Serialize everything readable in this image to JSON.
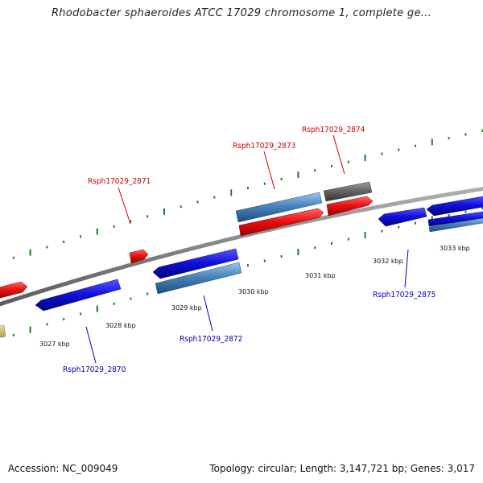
{
  "title": "Rhodobacter sphaeroides ATCC 17029 chromosome 1, complete ge...",
  "footer": {
    "accession": "Accession: NC_009049",
    "topology": "Topology: circular; Length: 3,147,721 bp; Genes: 3,017"
  },
  "colors": {
    "forward_gene": "#e8111a",
    "reverse_gene": "#1414dc",
    "forward_label": "#cc0000",
    "reverse_label": "#0000aa",
    "rna_feature": "#4a84bd",
    "pseudo_feature": "#666666",
    "other_feature": "#c8bf7c",
    "backbone": "#8a8a8a",
    "ticks": "#1f7a1f"
  },
  "kbp_labels": [
    "3027 kbp",
    "3028 kbp",
    "3029 kbp",
    "3030 kbp",
    "3031 kbp",
    "3032 kbp",
    "3033 kbp"
  ],
  "genes": [
    {
      "id": "Rsph17029_2870",
      "strand": "reverse"
    },
    {
      "id": "Rsph17029_2871",
      "strand": "forward"
    },
    {
      "id": "Rsph17029_2872",
      "strand": "reverse"
    },
    {
      "id": "Rsph17029_2873",
      "strand": "forward"
    },
    {
      "id": "Rsph17029_2874",
      "strand": "forward"
    },
    {
      "id": "Rsph17029_2875",
      "strand": "reverse"
    }
  ]
}
